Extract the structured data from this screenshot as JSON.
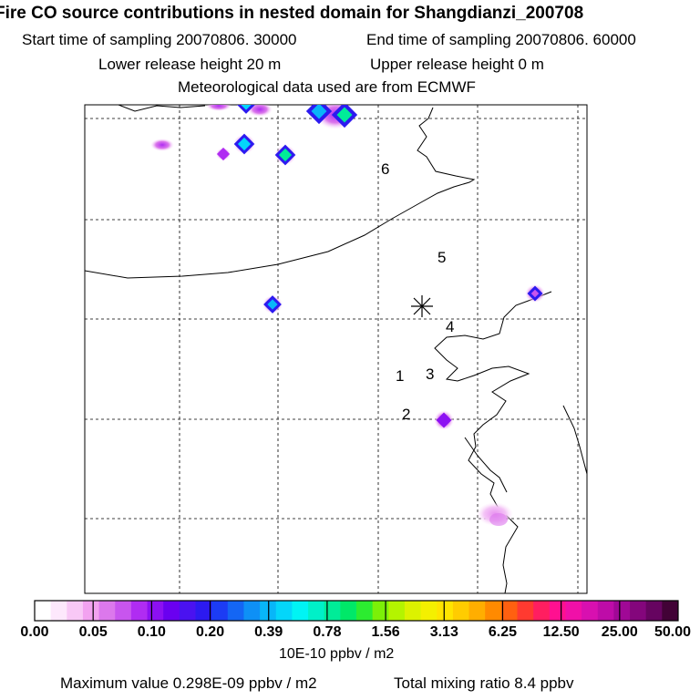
{
  "header": {
    "title": "Fire CO source contributions in nested domain for Shangdianzi_200708",
    "start_time": "Start time of sampling 20070806. 30000",
    "end_time": "End time of sampling 20070806. 60000",
    "lower_height": "Lower release height   20 m",
    "upper_height": "Upper release height    0 m",
    "met_data": "Meteorological data used are from ECMWF"
  },
  "map": {
    "receptor_marker": "asterisk",
    "region_labels": [
      "1",
      "2",
      "3",
      "4",
      "5",
      "6"
    ]
  },
  "colorbar": {
    "tick_labels": [
      "0.00",
      "0.05",
      "0.10",
      "0.20",
      "0.39",
      "0.78",
      "1.56",
      "3.13",
      "6.25",
      "12.50",
      "25.00",
      "50.00"
    ],
    "colors": [
      "#ffffff",
      "#fde8fc",
      "#f8c8f6",
      "#f2a2f0",
      "#dc78ec",
      "#c855ee",
      "#b02cf2",
      "#8c10f2",
      "#6a00f0",
      "#4a12f0",
      "#2c1af0",
      "#1c3cf4",
      "#1466f4",
      "#0e90f6",
      "#08b6f8",
      "#04d6fa",
      "#00f4f4",
      "#00f0c8",
      "#00ec98",
      "#00e868",
      "#2cec30",
      "#7cf008",
      "#b4f400",
      "#dcf200",
      "#f4f000",
      "#ffe400",
      "#ffcc00",
      "#ffae00",
      "#ff8a00",
      "#ff6010",
      "#ff3a30",
      "#ff1e60",
      "#ff1090",
      "#f010a8",
      "#d810b0",
      "#be0ca8",
      "#a00896",
      "#84067c",
      "#660460",
      "#420236"
    ],
    "units": "10E-10 ppbv / m2"
  },
  "footer": {
    "max_value": "Maximum value  0.298E-09 ppbv / m2",
    "total_mixing": "Total mixing ratio       8.4 ppbv"
  }
}
